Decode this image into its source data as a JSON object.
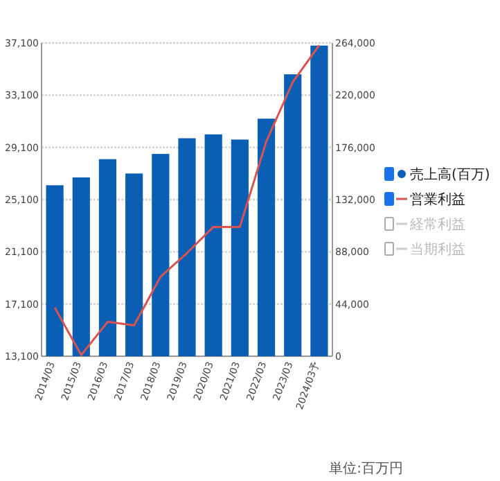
{
  "chart_data": {
    "type": "bar",
    "categories": [
      "2014/03",
      "2015/03",
      "2016/03",
      "2017/03",
      "2018/03",
      "2019/03",
      "2020/03",
      "2021/03",
      "2022/03",
      "2023/03",
      "2024/03予"
    ],
    "series": [
      {
        "name": "売上高(百万)",
        "color": "#0a5fb4",
        "values": [
          26200,
          26800,
          28200,
          27100,
          28600,
          29800,
          30100,
          29700,
          31300,
          34700,
          36900
        ]
      },
      {
        "name": "営業利益",
        "type": "line",
        "axis": "y2",
        "color": "#d9534f",
        "values": [
          41000,
          1000,
          29000,
          26000,
          67000,
          87000,
          109000,
          109000,
          181000,
          231000,
          262000
        ]
      },
      {
        "name": "経常利益",
        "type": "line",
        "axis": "y2",
        "color": "#cccccc",
        "values": [
          null,
          null,
          null,
          null,
          null,
          null,
          null,
          null,
          null,
          null,
          null
        ]
      },
      {
        "name": "当期利益",
        "type": "line",
        "axis": "y2",
        "color": "#cccccc",
        "values": [
          null,
          null,
          null,
          null,
          null,
          null,
          null,
          null,
          null,
          null,
          null
        ]
      }
    ],
    "ylim": [
      13100,
      37100
    ],
    "yticks": [
      {
        "value": 13100,
        "label": "13,100"
      },
      {
        "value": 17100,
        "label": "17,100"
      },
      {
        "value": 21100,
        "label": "21,100"
      },
      {
        "value": 25100,
        "label": "25,100"
      },
      {
        "value": 29100,
        "label": "29,100"
      },
      {
        "value": 33100,
        "label": "33,100"
      },
      {
        "value": 37100,
        "label": "37,100"
      }
    ],
    "y2lim": [
      0,
      264000
    ],
    "y2ticks": [
      0,
      {
        "value": 44000,
        "label": "44,000"
      },
      {
        "value": 88000,
        "label": "88,000"
      },
      {
        "value": 132000,
        "label": "132,000"
      },
      {
        "value": 176000,
        "label": "176,000"
      },
      {
        "value": 220000,
        "label": "220,000"
      },
      {
        "value": 264000,
        "label": "264,000"
      }
    ],
    "grid": "y",
    "legend": "right",
    "annotations": [
      "単位:百万円"
    ]
  }
}
